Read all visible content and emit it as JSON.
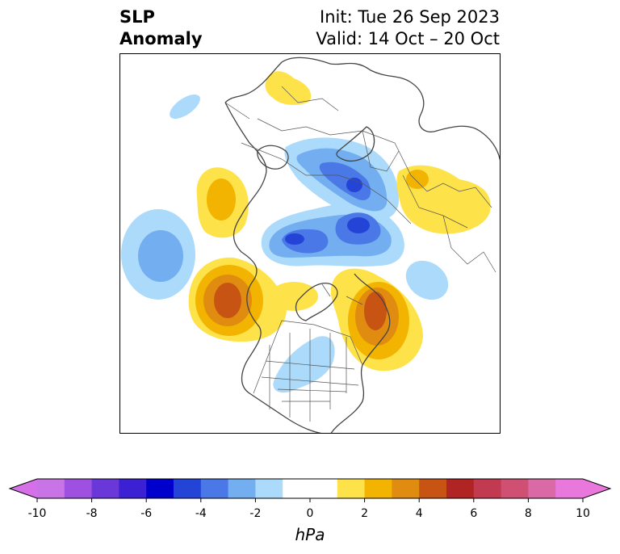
{
  "title": {
    "left_line1": "SLP",
    "left_line2": "Anomaly",
    "right_line1": "Init: Tue 26 Sep 2023",
    "right_line2": "Valid: 14 Oct – 20 Oct"
  },
  "colorbar": {
    "unit": "hPa",
    "tick_labels": [
      "-10",
      "-8",
      "-6",
      "-4",
      "-2",
      "0",
      "2",
      "4",
      "6",
      "8",
      "10"
    ],
    "levels": [
      -10,
      -9,
      -8,
      -7,
      -6,
      -5,
      -4,
      -3,
      -2,
      -1,
      1,
      2,
      3,
      4,
      5,
      6,
      7,
      8,
      9,
      10
    ],
    "colors": [
      "#c874e6",
      "#9e50e0",
      "#6a38d8",
      "#3b20d4",
      "#0000cc",
      "#2444d8",
      "#4a78e6",
      "#72aef0",
      "#acdafa",
      "#ffffff",
      "#fde24a",
      "#f2b400",
      "#e08c10",
      "#c85414",
      "#b02424",
      "#c23a50",
      "#cf5072",
      "#da6aa6",
      "#e878dc"
    ],
    "extend_low_color": "#d670e8",
    "extend_high_color": "#ea78dc"
  },
  "map": {
    "projection": "north-polar-stereographic",
    "features": [
      "coastlines",
      "country borders",
      "US state borders"
    ]
  }
}
